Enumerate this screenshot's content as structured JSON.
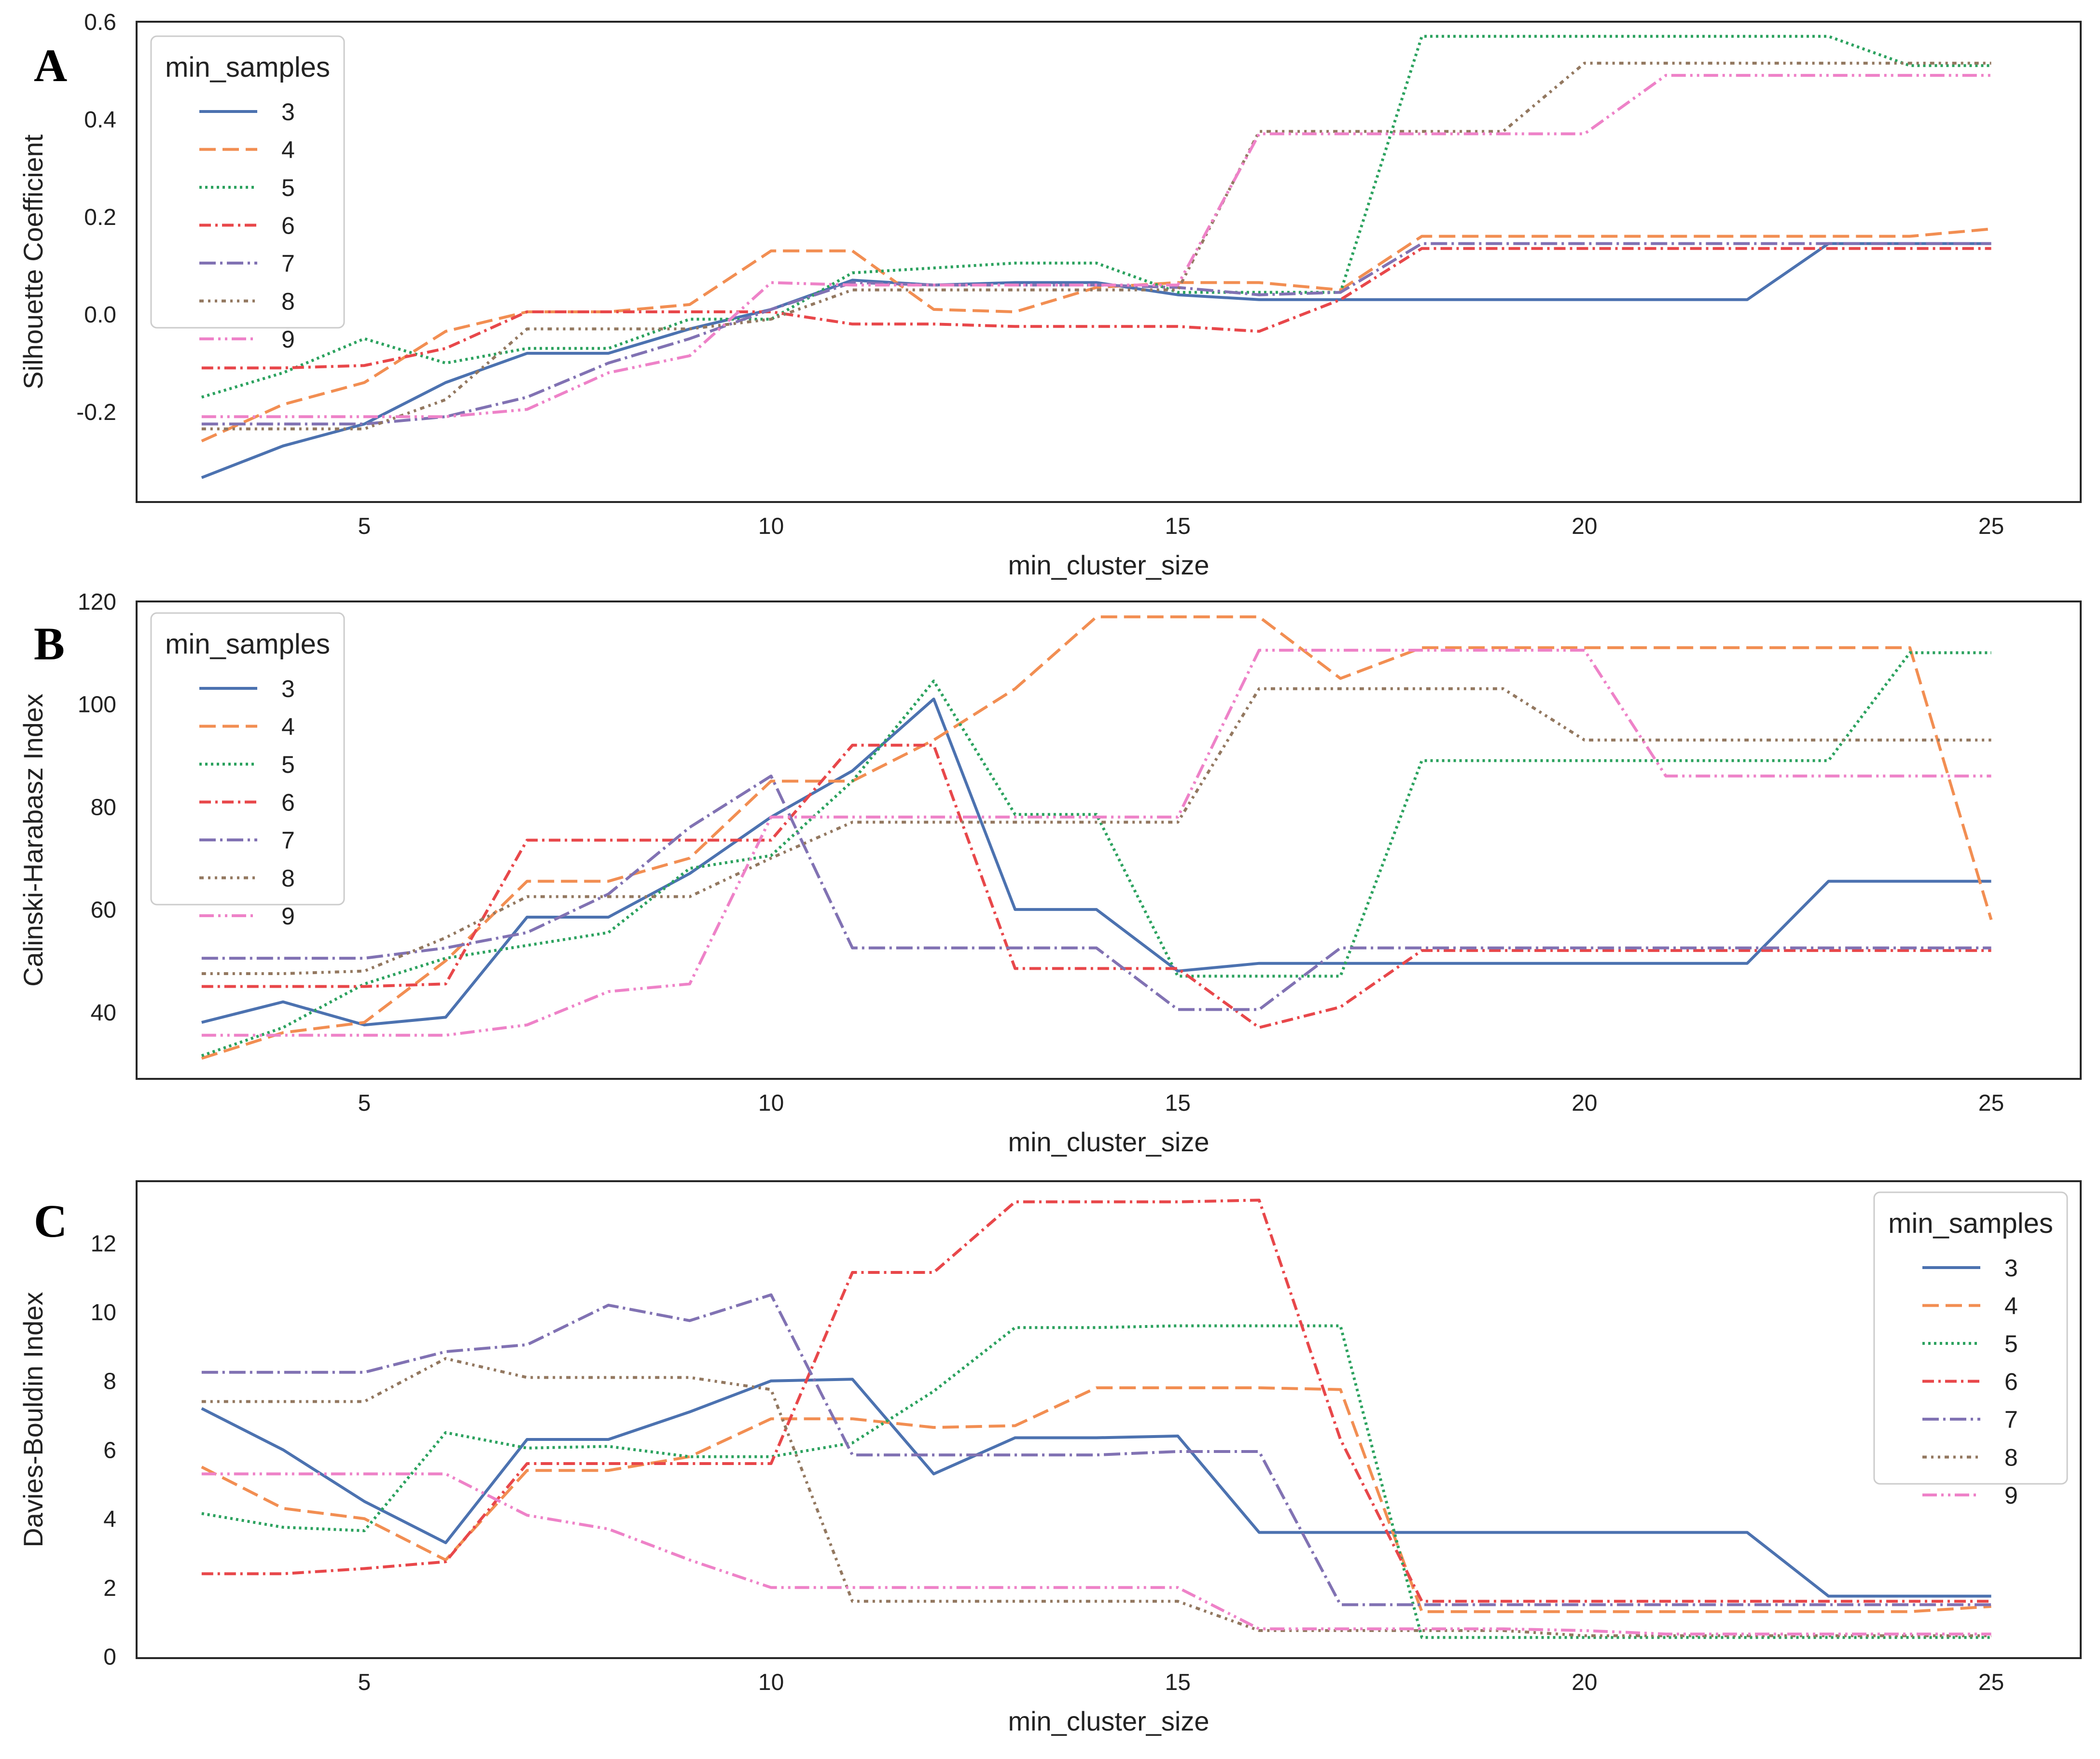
{
  "figure": {
    "palette": [
      "#4c72b0",
      "#f28e52",
      "#2ca25f",
      "#e8474a",
      "#8172b3",
      "#937860",
      "#ee82c8"
    ],
    "legend_title": "min_samples"
  },
  "chart_data": [
    {
      "type": "line",
      "panel": "A",
      "xlabel": "min_cluster_size",
      "ylabel": "Silhouette Coefficient",
      "xlim": [
        2.2,
        26.1
      ],
      "ylim": [
        -0.385,
        0.6
      ],
      "xticks": [
        "5",
        "10",
        "15",
        "20",
        "25"
      ],
      "yticks": [
        "-0.2",
        "0.0",
        "0.2",
        "0.4",
        "0.6"
      ],
      "legend_loc": "upper-left",
      "x": [
        3,
        4,
        5,
        6,
        7,
        8,
        9,
        10,
        11,
        12,
        13,
        14,
        15,
        16,
        17,
        18,
        19,
        20,
        21,
        22,
        23,
        24,
        25
      ],
      "series": [
        {
          "name": "3",
          "values": [
            -0.335,
            -0.27,
            -0.225,
            -0.14,
            -0.08,
            -0.08,
            -0.03,
            0.01,
            0.07,
            0.06,
            0.065,
            0.065,
            0.04,
            0.03,
            0.03,
            0.03,
            0.03,
            0.03,
            0.03,
            0.03,
            0.145,
            0.145,
            0.145
          ]
        },
        {
          "name": "4",
          "values": [
            -0.26,
            -0.185,
            -0.14,
            -0.035,
            0.005,
            0.005,
            0.02,
            0.13,
            0.13,
            0.01,
            0.005,
            0.055,
            0.065,
            0.065,
            0.05,
            0.16,
            0.16,
            0.16,
            0.16,
            0.16,
            0.16,
            0.16,
            0.175
          ]
        },
        {
          "name": "5",
          "values": [
            -0.17,
            -0.12,
            -0.05,
            -0.1,
            -0.07,
            -0.07,
            -0.01,
            -0.01,
            0.085,
            0.095,
            0.105,
            0.105,
            0.045,
            0.045,
            0.045,
            0.57,
            0.57,
            0.57,
            0.57,
            0.57,
            0.57,
            0.51,
            0.51
          ]
        },
        {
          "name": "6",
          "values": [
            -0.11,
            -0.11,
            -0.105,
            -0.07,
            0.005,
            0.005,
            0.005,
            0.005,
            -0.02,
            -0.02,
            -0.025,
            -0.025,
            -0.025,
            -0.035,
            0.03,
            0.135,
            0.135,
            0.135,
            0.135,
            0.135,
            0.135,
            0.135,
            0.135
          ]
        },
        {
          "name": "7",
          "values": [
            -0.225,
            -0.225,
            -0.225,
            -0.21,
            -0.17,
            -0.1,
            -0.05,
            0.01,
            0.065,
            0.06,
            0.06,
            0.06,
            0.055,
            0.04,
            0.045,
            0.145,
            0.145,
            0.145,
            0.145,
            0.145,
            0.145,
            0.145,
            0.145
          ]
        },
        {
          "name": "8",
          "values": [
            -0.235,
            -0.235,
            -0.235,
            -0.175,
            -0.03,
            -0.03,
            -0.03,
            -0.01,
            0.05,
            0.05,
            0.05,
            0.05,
            0.05,
            0.375,
            0.375,
            0.375,
            0.375,
            0.515,
            0.515,
            0.515,
            0.515,
            0.515,
            0.515
          ]
        },
        {
          "name": "9",
          "values": [
            -0.21,
            -0.21,
            -0.21,
            -0.21,
            -0.195,
            -0.12,
            -0.085,
            0.065,
            0.06,
            0.06,
            0.06,
            0.06,
            0.06,
            0.37,
            0.37,
            0.37,
            0.37,
            0.37,
            0.49,
            0.49,
            0.49,
            0.49,
            0.49
          ]
        }
      ]
    },
    {
      "type": "line",
      "panel": "B",
      "xlabel": "min_cluster_size",
      "ylabel": "Calinski-Harabasz Index",
      "xlim": [
        2.2,
        26.1
      ],
      "ylim": [
        27,
        120
      ],
      "xticks": [
        "5",
        "10",
        "15",
        "20",
        "25"
      ],
      "yticks": [
        "40",
        "60",
        "80",
        "100",
        "120"
      ],
      "legend_loc": "upper-left",
      "x": [
        3,
        4,
        5,
        6,
        7,
        8,
        9,
        10,
        11,
        12,
        13,
        14,
        15,
        16,
        17,
        18,
        19,
        20,
        21,
        22,
        23,
        24,
        25
      ],
      "series": [
        {
          "name": "3",
          "values": [
            38,
            42,
            37.5,
            39,
            58.5,
            58.5,
            67,
            78,
            87,
            101,
            60,
            60,
            48,
            49.5,
            49.5,
            49.5,
            49.5,
            49.5,
            49.5,
            49.5,
            65.5,
            65.5,
            65.5
          ]
        },
        {
          "name": "4",
          "values": [
            31,
            36,
            38,
            50,
            65.5,
            65.5,
            70,
            85,
            85,
            93,
            103,
            117,
            117,
            117,
            105,
            111,
            111,
            111,
            111,
            111,
            111,
            111,
            58
          ]
        },
        {
          "name": "5",
          "values": [
            31.5,
            37,
            45.5,
            50.5,
            53,
            55.5,
            68,
            70.5,
            85,
            104.5,
            78.5,
            78.5,
            47,
            47,
            47,
            89,
            89,
            89,
            89,
            89,
            89,
            110,
            110
          ]
        },
        {
          "name": "6",
          "values": [
            45,
            45,
            45,
            45.5,
            73.5,
            73.5,
            73.5,
            73.5,
            92,
            92,
            48.5,
            48.5,
            48.5,
            37,
            41,
            52,
            52,
            52,
            52,
            52,
            52,
            52,
            52
          ]
        },
        {
          "name": "7",
          "values": [
            50.5,
            50.5,
            50.5,
            52.5,
            55.5,
            63,
            76,
            86,
            52.5,
            52.5,
            52.5,
            52.5,
            40.5,
            40.5,
            52.5,
            52.5,
            52.5,
            52.5,
            52.5,
            52.5,
            52.5,
            52.5,
            52.5
          ]
        },
        {
          "name": "8",
          "values": [
            47.5,
            47.5,
            48,
            54.5,
            62.5,
            62.5,
            62.5,
            70,
            77,
            77,
            77,
            77,
            77,
            103,
            103,
            103,
            103,
            93,
            93,
            93,
            93,
            93,
            93
          ]
        },
        {
          "name": "9",
          "values": [
            35.5,
            35.5,
            35.5,
            35.5,
            37.5,
            44,
            45.5,
            78,
            78,
            78,
            78,
            78,
            78,
            110.5,
            110.5,
            110.5,
            110.5,
            110.5,
            86,
            86,
            86,
            86,
            86
          ]
        }
      ]
    },
    {
      "type": "line",
      "panel": "C",
      "xlabel": "min_cluster_size",
      "ylabel": "Davies-Bouldin Index",
      "xlim": [
        2.2,
        26.1
      ],
      "ylim": [
        -0.05,
        13.8
      ],
      "xticks": [
        "5",
        "10",
        "15",
        "20",
        "25"
      ],
      "yticks": [
        "0",
        "2",
        "4",
        "6",
        "8",
        "10",
        "12"
      ],
      "legend_loc": "upper-right",
      "x": [
        3,
        4,
        5,
        6,
        7,
        8,
        9,
        10,
        11,
        12,
        13,
        14,
        15,
        16,
        17,
        18,
        19,
        20,
        21,
        22,
        23,
        24,
        25
      ],
      "series": [
        {
          "name": "3",
          "values": [
            7.2,
            6,
            4.5,
            3.3,
            6.3,
            6.3,
            7.1,
            8,
            8.05,
            5.3,
            6.35,
            6.35,
            6.4,
            3.6,
            3.6,
            3.6,
            3.6,
            3.6,
            3.6,
            3.6,
            1.75,
            1.75,
            1.75
          ]
        },
        {
          "name": "4",
          "values": [
            5.5,
            4.3,
            4,
            2.8,
            5.4,
            5.4,
            5.8,
            6.9,
            6.9,
            6.65,
            6.7,
            7.8,
            7.8,
            7.8,
            7.75,
            1.3,
            1.3,
            1.3,
            1.3,
            1.3,
            1.3,
            1.3,
            1.45
          ]
        },
        {
          "name": "5",
          "values": [
            4.15,
            3.75,
            3.65,
            6.5,
            6.05,
            6.1,
            5.8,
            5.8,
            6.2,
            7.7,
            9.55,
            9.55,
            9.6,
            9.6,
            9.6,
            0.55,
            0.55,
            0.55,
            0.55,
            0.55,
            0.55,
            0.55,
            0.55
          ]
        },
        {
          "name": "6",
          "values": [
            2.4,
            2.4,
            2.55,
            2.75,
            5.6,
            5.6,
            5.6,
            5.6,
            11.15,
            11.15,
            13.2,
            13.2,
            13.2,
            13.25,
            6.3,
            1.6,
            1.6,
            1.6,
            1.6,
            1.6,
            1.6,
            1.6,
            1.6
          ]
        },
        {
          "name": "7",
          "values": [
            8.25,
            8.25,
            8.25,
            8.85,
            9.05,
            10.2,
            9.75,
            10.5,
            5.85,
            5.85,
            5.85,
            5.85,
            5.95,
            5.95,
            1.5,
            1.5,
            1.5,
            1.5,
            1.5,
            1.5,
            1.5,
            1.5,
            1.5
          ]
        },
        {
          "name": "8",
          "values": [
            7.4,
            7.4,
            7.4,
            8.65,
            8.1,
            8.1,
            8.1,
            7.75,
            1.6,
            1.6,
            1.6,
            1.6,
            1.6,
            0.75,
            0.75,
            0.75,
            0.75,
            0.6,
            0.6,
            0.6,
            0.6,
            0.6,
            0.6
          ]
        },
        {
          "name": "9",
          "values": [
            5.3,
            5.3,
            5.3,
            5.3,
            4.1,
            3.7,
            2.8,
            2,
            2,
            2,
            2,
            2,
            2,
            0.8,
            0.8,
            0.8,
            0.8,
            0.75,
            0.65,
            0.65,
            0.65,
            0.65,
            0.65
          ]
        }
      ]
    }
  ]
}
